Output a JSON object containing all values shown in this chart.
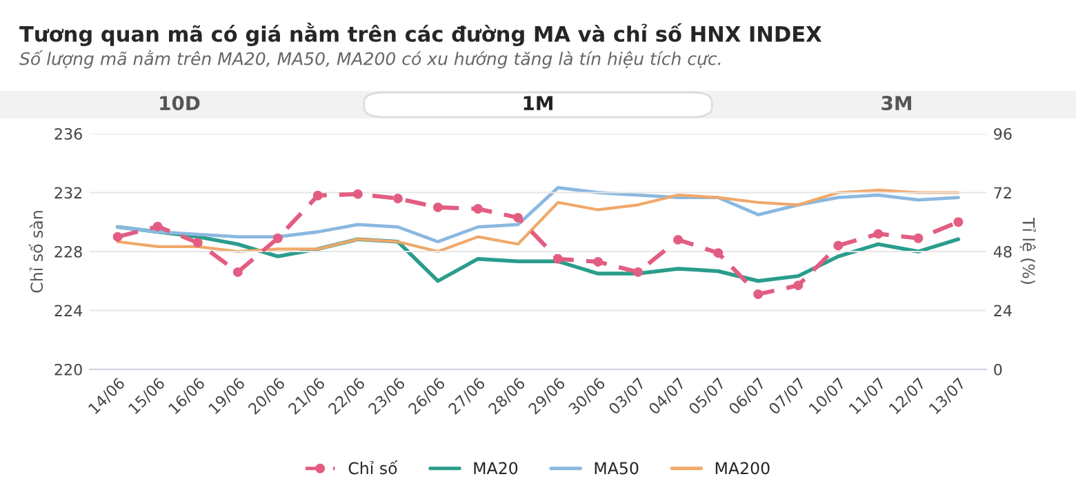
{
  "chart_data": {
    "type": "line",
    "title": "Tương quan mã có giá nằm trên các đường MA và chỉ số HNX INDEX",
    "subtitle": "Số lượng mã nằm trên MA20, MA50, MA200 có xu hướng tăng là tín hiệu tích cực.",
    "annotations": [
      "10D",
      "1M",
      "3M"
    ],
    "xlabel": null,
    "ylabel": "Chỉ số sàn",
    "y2label": "Tỉ lệ (%)",
    "categories": [
      "14/06",
      "15/06",
      "16/06",
      "19/06",
      "20/06",
      "21/06",
      "22/06",
      "23/06",
      "26/06",
      "27/06",
      "28/06",
      "29/06",
      "30/06",
      "03/07",
      "04/07",
      "05/07",
      "06/07",
      "07/07",
      "10/07",
      "11/07",
      "12/07",
      "13/07"
    ],
    "series": [
      {
        "name": "Chỉ số",
        "color": "#e35d82",
        "axis": "y",
        "marker": "circle",
        "line_style": "dashed",
        "values": [
          229.0,
          229.7,
          228.6,
          226.6,
          228.9,
          231.8,
          231.9,
          231.6,
          231.0,
          230.9,
          230.3,
          227.5,
          227.3,
          226.6,
          228.8,
          227.9,
          225.1,
          225.7,
          228.4,
          229.2,
          228.9,
          230.0
        ]
      },
      {
        "name": "MA20",
        "color": "#2a9d8c",
        "axis": "y2",
        "marker": "none",
        "line_style": "solid",
        "values": [
          58,
          56,
          54,
          51,
          46,
          49,
          53,
          52,
          36,
          45,
          44,
          44,
          39,
          39,
          41,
          40,
          36,
          38,
          46,
          51,
          48,
          53
        ]
      },
      {
        "name": "MA50",
        "color": "#8ab8e0",
        "axis": "y2",
        "marker": "none",
        "line_style": "solid",
        "values": [
          58,
          56,
          55,
          54,
          54,
          56,
          59,
          58,
          52,
          58,
          59,
          74,
          72,
          71,
          70,
          70,
          63,
          67,
          70,
          71,
          69,
          70
        ]
      },
      {
        "name": "MA200",
        "color": "#f0a86a",
        "axis": "y2",
        "marker": "none",
        "line_style": "solid",
        "values": [
          52,
          50,
          50,
          48,
          49,
          49,
          53,
          52,
          48,
          54,
          51,
          68,
          65,
          67,
          71,
          70,
          68,
          67,
          72,
          73,
          72,
          72
        ]
      }
    ],
    "ylim": [
      220,
      236
    ],
    "yticks": [
      220,
      224,
      228,
      232,
      236
    ],
    "y2lim": [
      0,
      96
    ],
    "y2ticks": [
      0,
      24,
      48,
      72,
      96
    ],
    "grid": "y",
    "legend": "bottom"
  }
}
